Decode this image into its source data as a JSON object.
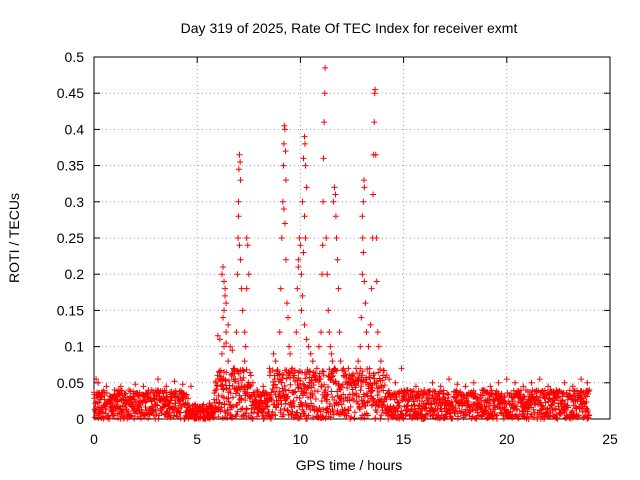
{
  "chart_data": {
    "type": "scatter",
    "title": "Day 319 of 2025, Rate Of TEC Index for receiver exmt",
    "xlabel": "GPS time / hours",
    "ylabel": "ROTI / TECUs",
    "xlim": [
      0,
      25
    ],
    "ylim": [
      0,
      0.5
    ],
    "x_ticks": [
      0,
      5,
      10,
      15,
      20,
      25
    ],
    "x_tick_labels": [
      "0",
      "5",
      "10",
      "15",
      "20",
      "25"
    ],
    "y_ticks": [
      0,
      0.05,
      0.1,
      0.15,
      0.2,
      0.25,
      0.3,
      0.35,
      0.4,
      0.45,
      0.5
    ],
    "y_tick_labels": [
      "0",
      "0.05",
      "0.1",
      "0.15",
      "0.2",
      "0.25",
      "0.3",
      "0.35",
      "0.4",
      "0.45",
      "0.5"
    ],
    "grid": true,
    "marker": "+",
    "marker_color": "#ff0000",
    "series": [
      {
        "name": "ROTI",
        "points": [
          [
            0.1,
            0.055
          ],
          [
            0.2,
            0.05
          ],
          [
            0.35,
            0.03
          ],
          [
            0.6,
            0.045
          ],
          [
            1.0,
            0.04
          ],
          [
            1.3,
            0.045
          ],
          [
            1.7,
            0.04
          ],
          [
            2.0,
            0.048
          ],
          [
            2.4,
            0.045
          ],
          [
            2.8,
            0.04
          ],
          [
            3.1,
            0.055
          ],
          [
            3.5,
            0.045
          ],
          [
            3.9,
            0.052
          ],
          [
            4.3,
            0.048
          ],
          [
            4.7,
            0.045
          ],
          [
            4.9,
            0.02
          ],
          [
            5.3,
            0.02
          ],
          [
            5.6,
            0.022
          ],
          [
            5.9,
            0.05
          ],
          [
            6.0,
            0.115
          ],
          [
            6.1,
            0.11
          ],
          [
            6.2,
            0.09
          ],
          [
            6.3,
            0.1
          ],
          [
            6.4,
            0.105
          ],
          [
            6.5,
            0.08
          ],
          [
            6.2,
            0.2
          ],
          [
            6.25,
            0.21
          ],
          [
            6.3,
            0.19
          ],
          [
            6.35,
            0.18
          ],
          [
            6.4,
            0.16
          ],
          [
            6.3,
            0.15
          ],
          [
            6.25,
            0.14
          ],
          [
            6.35,
            0.17
          ],
          [
            6.4,
            0.12
          ],
          [
            6.5,
            0.13
          ],
          [
            6.6,
            0.1
          ],
          [
            6.7,
            0.095
          ],
          [
            6.8,
            0.07
          ],
          [
            6.9,
            0.12
          ],
          [
            6.95,
            0.2
          ],
          [
            6.98,
            0.25
          ],
          [
            7.0,
            0.3
          ],
          [
            7.02,
            0.345
          ],
          [
            7.05,
            0.365
          ],
          [
            7.08,
            0.355
          ],
          [
            7.1,
            0.33
          ],
          [
            7.0,
            0.28
          ],
          [
            7.05,
            0.24
          ],
          [
            7.1,
            0.22
          ],
          [
            7.15,
            0.18
          ],
          [
            7.2,
            0.15
          ],
          [
            7.3,
            0.12
          ],
          [
            7.35,
            0.1
          ],
          [
            7.4,
            0.25
          ],
          [
            7.45,
            0.24
          ],
          [
            7.5,
            0.2
          ],
          [
            7.4,
            0.18
          ],
          [
            7.3,
            0.08
          ],
          [
            7.6,
            0.06
          ],
          [
            7.7,
            0.05
          ],
          [
            7.9,
            0.04
          ],
          [
            8.2,
            0.045
          ],
          [
            8.5,
            0.07
          ],
          [
            8.7,
            0.09
          ],
          [
            8.8,
            0.08
          ],
          [
            8.9,
            0.06
          ],
          [
            9.0,
            0.12
          ],
          [
            9.05,
            0.18
          ],
          [
            9.1,
            0.25
          ],
          [
            9.15,
            0.3
          ],
          [
            9.18,
            0.35
          ],
          [
            9.2,
            0.38
          ],
          [
            9.22,
            0.405
          ],
          [
            9.25,
            0.4
          ],
          [
            9.28,
            0.37
          ],
          [
            9.3,
            0.33
          ],
          [
            9.2,
            0.29
          ],
          [
            9.25,
            0.27
          ],
          [
            9.3,
            0.22
          ],
          [
            9.35,
            0.16
          ],
          [
            9.4,
            0.14
          ],
          [
            9.45,
            0.1
          ],
          [
            9.5,
            0.09
          ],
          [
            9.6,
            0.07
          ],
          [
            9.7,
            0.06
          ],
          [
            9.8,
            0.12
          ],
          [
            9.85,
            0.18
          ],
          [
            9.9,
            0.22
          ],
          [
            9.95,
            0.25
          ],
          [
            10.0,
            0.24
          ],
          [
            9.9,
            0.21
          ],
          [
            10.05,
            0.2
          ],
          [
            10.1,
            0.3
          ],
          [
            10.15,
            0.36
          ],
          [
            10.2,
            0.39
          ],
          [
            10.22,
            0.38
          ],
          [
            10.25,
            0.35
          ],
          [
            10.3,
            0.32
          ],
          [
            10.2,
            0.28
          ],
          [
            10.25,
            0.25
          ],
          [
            10.15,
            0.23
          ],
          [
            10.1,
            0.17
          ],
          [
            10.05,
            0.15
          ],
          [
            10.2,
            0.13
          ],
          [
            10.3,
            0.11
          ],
          [
            10.4,
            0.1
          ],
          [
            10.5,
            0.09
          ],
          [
            10.6,
            0.08
          ],
          [
            10.7,
            0.06
          ],
          [
            10.8,
            0.07
          ],
          [
            10.9,
            0.1
          ],
          [
            11.0,
            0.12
          ],
          [
            11.05,
            0.2
          ],
          [
            11.08,
            0.24
          ],
          [
            11.1,
            0.3
          ],
          [
            11.12,
            0.36
          ],
          [
            11.15,
            0.41
          ],
          [
            11.18,
            0.45
          ],
          [
            11.2,
            0.485
          ],
          [
            11.25,
            0.25
          ],
          [
            11.3,
            0.2
          ],
          [
            11.35,
            0.15
          ],
          [
            11.4,
            0.12
          ],
          [
            11.45,
            0.1
          ],
          [
            11.5,
            0.09
          ],
          [
            11.55,
            0.08
          ],
          [
            11.6,
            0.3
          ],
          [
            11.65,
            0.32
          ],
          [
            11.7,
            0.31
          ],
          [
            11.72,
            0.28
          ],
          [
            11.75,
            0.25
          ],
          [
            11.8,
            0.22
          ],
          [
            11.85,
            0.18
          ],
          [
            11.9,
            0.12
          ],
          [
            11.95,
            0.08
          ],
          [
            12.1,
            0.06
          ],
          [
            12.3,
            0.05
          ],
          [
            12.5,
            0.06
          ],
          [
            12.7,
            0.07
          ],
          [
            12.8,
            0.08
          ],
          [
            12.9,
            0.1
          ],
          [
            12.95,
            0.14
          ],
          [
            13.0,
            0.2
          ],
          [
            13.02,
            0.25
          ],
          [
            13.05,
            0.3
          ],
          [
            13.08,
            0.33
          ],
          [
            13.1,
            0.32
          ],
          [
            13.0,
            0.28
          ],
          [
            13.05,
            0.23
          ],
          [
            13.1,
            0.19
          ],
          [
            13.15,
            0.16
          ],
          [
            13.2,
            0.12
          ],
          [
            13.3,
            0.1
          ],
          [
            13.4,
            0.13
          ],
          [
            13.45,
            0.18
          ],
          [
            13.5,
            0.25
          ],
          [
            13.52,
            0.31
          ],
          [
            13.55,
            0.365
          ],
          [
            13.58,
            0.41
          ],
          [
            13.6,
            0.45
          ],
          [
            13.62,
            0.455
          ],
          [
            13.65,
            0.365
          ],
          [
            13.68,
            0.25
          ],
          [
            13.7,
            0.19
          ],
          [
            13.75,
            0.12
          ],
          [
            13.8,
            0.1
          ],
          [
            13.9,
            0.08
          ],
          [
            14.0,
            0.06
          ],
          [
            14.3,
            0.055
          ],
          [
            14.6,
            0.05
          ],
          [
            14.9,
            0.07
          ],
          [
            15.2,
            0.04
          ],
          [
            15.6,
            0.045
          ],
          [
            16.0,
            0.04
          ],
          [
            16.4,
            0.05
          ],
          [
            16.8,
            0.045
          ],
          [
            17.2,
            0.055
          ],
          [
            17.6,
            0.048
          ],
          [
            18.0,
            0.045
          ],
          [
            18.4,
            0.05
          ],
          [
            18.8,
            0.04
          ],
          [
            19.2,
            0.045
          ],
          [
            19.6,
            0.05
          ],
          [
            20.0,
            0.055
          ],
          [
            20.4,
            0.05
          ],
          [
            20.8,
            0.045
          ],
          [
            21.2,
            0.05
          ],
          [
            21.6,
            0.055
          ],
          [
            22.0,
            0.045
          ],
          [
            22.4,
            0.04
          ],
          [
            22.8,
            0.05
          ],
          [
            23.2,
            0.045
          ],
          [
            23.6,
            0.055
          ],
          [
            23.9,
            0.05
          ],
          [
            24.0,
            0.04
          ]
        ]
      }
    ],
    "baseline_band": {
      "description_hours": [
        0,
        24
      ],
      "typical_range": [
        0.0,
        0.05
      ]
    }
  }
}
